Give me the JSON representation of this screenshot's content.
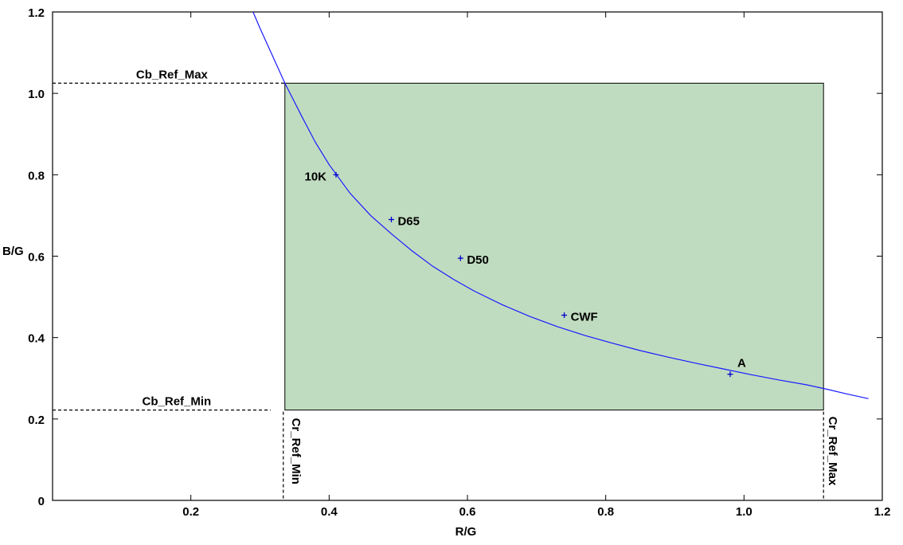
{
  "chart_data": {
    "type": "scatter",
    "title": "",
    "xlabel": "R/G",
    "ylabel": "B/G",
    "xlim": [
      0,
      1.2
    ],
    "ylim": [
      0,
      1.2
    ],
    "x_ticks": [
      {
        "value": 0,
        "label": ""
      },
      {
        "value": 0.2,
        "label": "0.2"
      },
      {
        "value": 0.4,
        "label": "0.4"
      },
      {
        "value": 0.6,
        "label": "0.6"
      },
      {
        "value": 0.8,
        "label": "0.8"
      },
      {
        "value": 1.0,
        "label": "1.0"
      },
      {
        "value": 1.2,
        "label": "1.2"
      }
    ],
    "y_ticks": [
      {
        "value": 0,
        "label": "0"
      },
      {
        "value": 0.2,
        "label": "0.2"
      },
      {
        "value": 0.4,
        "label": "0.4"
      },
      {
        "value": 0.6,
        "label": "0.6"
      },
      {
        "value": 0.8,
        "label": "0.8"
      },
      {
        "value": 1.0,
        "label": "1.0"
      },
      {
        "value": 1.2,
        "label": "1.2"
      }
    ],
    "grid": false,
    "points": [
      {
        "label": "10K",
        "x": 0.41,
        "y": 0.8
      },
      {
        "label": "D65",
        "x": 0.49,
        "y": 0.69
      },
      {
        "label": "D50",
        "x": 0.59,
        "y": 0.595
      },
      {
        "label": "CWF",
        "x": 0.74,
        "y": 0.455
      },
      {
        "label": "A",
        "x": 0.98,
        "y": 0.31
      }
    ],
    "curve": {
      "x": [
        0.29,
        0.3,
        0.32,
        0.336,
        0.36,
        0.38,
        0.4,
        0.43,
        0.46,
        0.49,
        0.52,
        0.55,
        0.58,
        0.61,
        0.65,
        0.69,
        0.73,
        0.77,
        0.81,
        0.85,
        0.89,
        0.93,
        0.97,
        1.01,
        1.05,
        1.09,
        1.12,
        1.15,
        1.18
      ],
      "y": [
        1.2,
        1.16,
        1.085,
        1.025,
        0.945,
        0.88,
        0.825,
        0.755,
        0.7,
        0.655,
        0.613,
        0.575,
        0.543,
        0.514,
        0.481,
        0.452,
        0.427,
        0.405,
        0.386,
        0.368,
        0.352,
        0.337,
        0.323,
        0.309,
        0.296,
        0.284,
        0.273,
        0.261,
        0.25
      ]
    },
    "reference_box": {
      "cr_ref_min": 0.336,
      "cr_ref_max": 1.115,
      "cb_ref_min": 0.222,
      "cb_ref_max": 1.025,
      "fill_color": "#c0dcc0",
      "labels": {
        "cb_max": "Cb_Ref_Max",
        "cb_min": "Cb_Ref_Min",
        "cr_min": "Cr_Ref_Min",
        "cr_max": "Cr_Ref_Max"
      }
    },
    "colors": {
      "curve": "#1a1aff",
      "marker": "#0000cc",
      "axis": "#000000"
    }
  }
}
